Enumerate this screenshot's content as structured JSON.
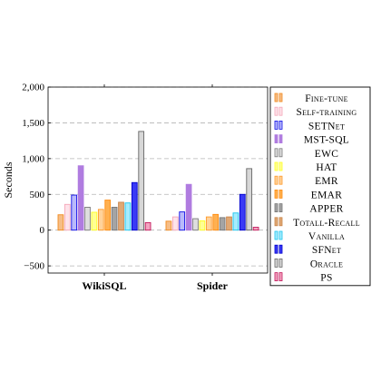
{
  "chart_data": {
    "type": "bar",
    "categories": [
      "WikiSQL",
      "Spider"
    ],
    "ylabel": "Seconds",
    "ylim": [
      -600,
      2000
    ],
    "yticks": [
      -500,
      0,
      500,
      1000,
      1500,
      2000
    ],
    "ytick_labels": [
      "−500",
      "0",
      "500",
      "1,000",
      "1,500",
      "2,000"
    ],
    "grid": "horizontal-dashed",
    "legend_position": "right",
    "series": [
      {
        "name": "Fine-tune",
        "values": [
          215,
          125
        ],
        "fill": "#f6bd86",
        "stroke": "#f28a1e"
      },
      {
        "name": "Self-training",
        "values": [
          360,
          185
        ],
        "fill": "#fde3ea",
        "stroke": "#f4a6b8"
      },
      {
        "name": "SETNet",
        "values": [
          490,
          255
        ],
        "fill": "#b9b9fb",
        "stroke": "#1010e6"
      },
      {
        "name": "MST-SQL",
        "values": [
          900,
          640
        ],
        "fill": "#b07ce0",
        "stroke": "#b07ce0"
      },
      {
        "name": "EWC",
        "values": [
          320,
          160
        ],
        "fill": "#dedede",
        "stroke": "#7a7a7a"
      },
      {
        "name": "HAT",
        "values": [
          250,
          130
        ],
        "fill": "#ffff94",
        "stroke": "#ffff20"
      },
      {
        "name": "EMR",
        "values": [
          290,
          185
        ],
        "fill": "#ffd29a",
        "stroke": "#ff9a2a"
      },
      {
        "name": "EMAR",
        "values": [
          420,
          220
        ],
        "fill": "#ffb050",
        "stroke": "#ff8c10"
      },
      {
        "name": "APPER",
        "values": [
          320,
          175
        ],
        "fill": "#a4a4a4",
        "stroke": "#777777"
      },
      {
        "name": "Totall-Recall",
        "values": [
          390,
          185
        ],
        "fill": "#e0a874",
        "stroke": "#c9844a"
      },
      {
        "name": "Vanilla",
        "values": [
          380,
          240
        ],
        "fill": "#a6ecfd",
        "stroke": "#18c4ee"
      },
      {
        "name": "SFNet",
        "values": [
          665,
          500
        ],
        "fill": "#3a3af6",
        "stroke": "#0000cc"
      },
      {
        "name": "Oracle",
        "values": [
          1380,
          860
        ],
        "fill": "#d7d7d7",
        "stroke": "#666666"
      },
      {
        "name": "PS",
        "values": [
          105,
          40
        ],
        "fill": "#f3a3c0",
        "stroke": "#c2185b"
      }
    ]
  }
}
